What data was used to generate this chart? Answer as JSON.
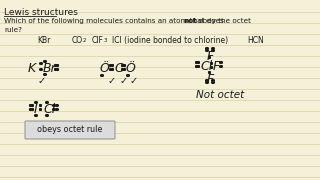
{
  "bg_color": "#f5f0d8",
  "line_color": "#d8d0a0",
  "text_color": "#1a1a1a",
  "title": "Lewis structures",
  "q_line1a": "Which of the following molecules contains an atom that does ",
  "q_line1b": "not",
  "q_line1c": " obey the octet",
  "q_line2": "rule?",
  "mol_labels": [
    "KBr",
    "CO",
    "2",
    "ClF",
    "3",
    "ICl (iodine bonded to chlorine)",
    "HCN"
  ],
  "box_text": "obeys octet rule",
  "not_octet": "Not octet"
}
